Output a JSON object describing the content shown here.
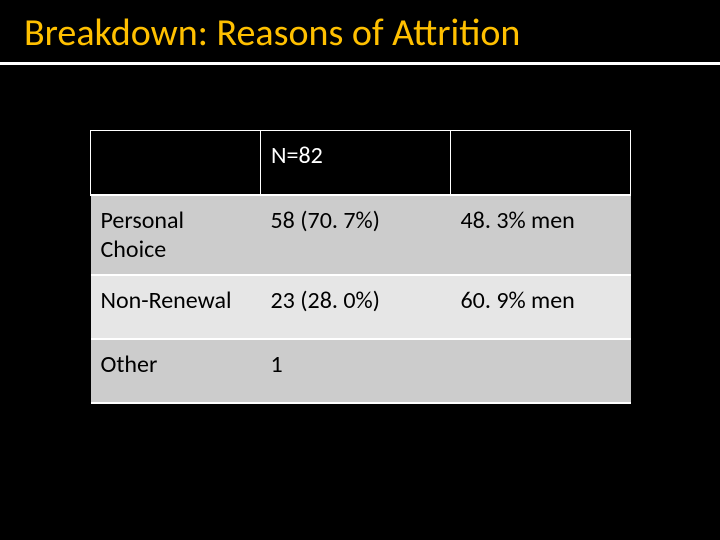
{
  "title": "Breakdown: Reasons of Attrition",
  "table": {
    "type": "table",
    "header": {
      "col1": "",
      "col2": "N=82",
      "col3": ""
    },
    "rows": [
      {
        "label": "Personal Choice",
        "value": "58 (70. 7%)",
        "detail": "48. 3% men",
        "shade": "light"
      },
      {
        "label": "Non-Renewal",
        "value": "23 (28. 0%)",
        "detail": "60. 9% men",
        "shade": "lighter"
      },
      {
        "label": "Other",
        "value": "1",
        "detail": "",
        "shade": "light"
      }
    ],
    "colors": {
      "background": "#000000",
      "title_color": "#ffc000",
      "header_bg": "#000000",
      "header_fg": "#ffffff",
      "row_shade_light": "#cccccc",
      "row_shade_lighter": "#e6e6e6",
      "row_fg": "#000000",
      "grid_line": "#ffffff"
    },
    "font": {
      "title_size_pt": 28,
      "body_size_pt": 18
    }
  }
}
